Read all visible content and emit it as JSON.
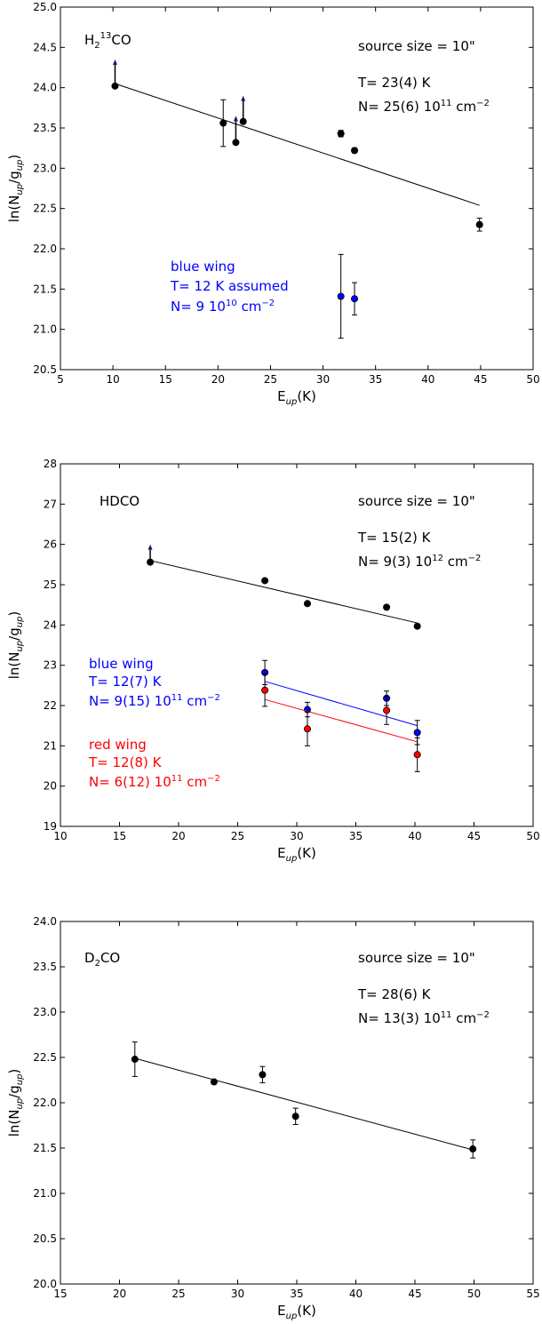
{
  "chart_data": [
    {
      "type": "scatter",
      "xlabel": "E",
      "xlabel_sub": "up",
      "xlabel_suffix": "(K)",
      "ylabel_pre": "ln(N",
      "ylabel_sub1": "up",
      "ylabel_mid": "/g",
      "ylabel_sub2": "up",
      "ylabel_post": ")",
      "xlim": [
        5,
        50
      ],
      "ylim": [
        20.5,
        25.0
      ],
      "xticks": [
        5,
        10,
        15,
        20,
        25,
        30,
        35,
        40,
        45,
        50
      ],
      "yticks": [
        20.5,
        21.0,
        21.5,
        22.0,
        22.5,
        23.0,
        23.5,
        24.0,
        24.5,
        25.0
      ],
      "xtick_labels": [
        "5",
        "10",
        "15",
        "20",
        "25",
        "30",
        "35",
        "40",
        "45",
        "50"
      ],
      "ytick_labels": [
        "20.5",
        "21.0",
        "21.5",
        "22.0",
        "22.5",
        "23.0",
        "23.5",
        "24.0",
        "24.5",
        "25.0"
      ],
      "molecule": {
        "pre": "H",
        "sub": "2",
        "sup": "13",
        "post": "CO"
      },
      "annotations": {
        "source": "source size = 10\"",
        "temp": "T= 23(4) K",
        "col_pre": "N= 25(6) 10",
        "col_exp": "11",
        "col_unit": " cm",
        "col_unit_exp": "−2"
      },
      "wing_labels": [
        {
          "color": "#0000ff",
          "line1": "blue wing",
          "line2": "T= 12 K assumed",
          "col_pre": "N= 9 10",
          "col_exp": "10",
          "col_unit": " cm",
          "col_unit_exp": "−2"
        }
      ],
      "series": [
        {
          "color": "#000000",
          "points": [
            {
              "x": 10.2,
              "y": 24.02,
              "arrow_top": 24.35
            },
            {
              "x": 20.5,
              "y": 23.56,
              "err": 0.29
            },
            {
              "x": 21.7,
              "y": 23.32,
              "arrow_top": 23.65
            },
            {
              "x": 22.4,
              "y": 23.58,
              "arrow_top": 23.9
            },
            {
              "x": 31.7,
              "y": 23.43,
              "err": 0.04
            },
            {
              "x": 33.0,
              "y": 23.22,
              "err": 0.03
            },
            {
              "x": 44.9,
              "y": 22.3,
              "err": 0.08
            }
          ],
          "fit": [
            [
              10.2,
              24.05
            ],
            [
              44.9,
              22.54
            ]
          ]
        },
        {
          "color": "#0000ff",
          "points": [
            {
              "x": 31.7,
              "y": 21.41,
              "err": 0.52
            },
            {
              "x": 33.0,
              "y": 21.38,
              "err": 0.2
            }
          ]
        }
      ]
    },
    {
      "type": "scatter",
      "xlabel": "E",
      "xlabel_sub": "up",
      "xlabel_suffix": "(K)",
      "ylabel_pre": "ln(N",
      "ylabel_sub1": "up",
      "ylabel_mid": "/g",
      "ylabel_sub2": "up",
      "ylabel_post": ")",
      "xlim": [
        10,
        50
      ],
      "ylim": [
        19,
        28
      ],
      "xticks": [
        10,
        15,
        20,
        25,
        30,
        35,
        40,
        45,
        50
      ],
      "yticks": [
        19,
        20,
        21,
        22,
        23,
        24,
        25,
        26,
        27,
        28
      ],
      "xtick_labels": [
        "10",
        "15",
        "20",
        "25",
        "30",
        "35",
        "40",
        "45",
        "50"
      ],
      "ytick_labels": [
        "19",
        "20",
        "21",
        "22",
        "23",
        "24",
        "25",
        "26",
        "27",
        "28"
      ],
      "molecule": {
        "pre": "HDCO",
        "sub": "",
        "sup": "",
        "post": ""
      },
      "annotations": {
        "source": "source size = 10\"",
        "temp": "T= 15(2) K",
        "col_pre": "N= 9(3) 10",
        "col_exp": "12",
        "col_unit": " cm",
        "col_unit_exp": "−2"
      },
      "wing_labels": [
        {
          "color": "#0000ff",
          "line1": "blue wing",
          "line2": "T= 12(7) K",
          "col_pre": "N= 9(15) 10",
          "col_exp": "11",
          "col_unit": " cm",
          "col_unit_exp": "−2"
        },
        {
          "color": "#ff0000",
          "line1": "red wing",
          "line2": "T= 12(8) K",
          "col_pre": "N= 6(12) 10",
          "col_exp": "11",
          "col_unit": " cm",
          "col_unit_exp": "−2"
        }
      ],
      "series": [
        {
          "color": "#000000",
          "points": [
            {
              "x": 17.6,
              "y": 25.56,
              "arrow_top": 26.0
            },
            {
              "x": 27.3,
              "y": 25.1
            },
            {
              "x": 30.9,
              "y": 24.53
            },
            {
              "x": 37.6,
              "y": 24.44
            },
            {
              "x": 40.2,
              "y": 23.97
            }
          ],
          "fit": [
            [
              17.6,
              25.6
            ],
            [
              40.2,
              24.05
            ]
          ]
        },
        {
          "color": "#0000ff",
          "points": [
            {
              "x": 27.3,
              "y": 22.82,
              "err": 0.3
            },
            {
              "x": 30.9,
              "y": 21.9,
              "err": 0.18
            },
            {
              "x": 37.6,
              "y": 22.18,
              "err": 0.18
            },
            {
              "x": 40.2,
              "y": 21.33,
              "err": 0.3
            }
          ],
          "fit": [
            [
              27.3,
              22.6
            ],
            [
              40.2,
              21.5
            ]
          ]
        },
        {
          "color": "#ff0000",
          "points": [
            {
              "x": 27.3,
              "y": 22.38,
              "err": 0.4
            },
            {
              "x": 30.9,
              "y": 21.42,
              "err": 0.42
            },
            {
              "x": 37.6,
              "y": 21.88,
              "err": 0.35
            },
            {
              "x": 40.2,
              "y": 20.78,
              "err": 0.42
            }
          ],
          "fit": [
            [
              27.3,
              22.15
            ],
            [
              40.2,
              21.1
            ]
          ]
        }
      ]
    },
    {
      "type": "scatter",
      "xlabel": "E",
      "xlabel_sub": "up",
      "xlabel_suffix": "(K)",
      "ylabel_pre": "ln(N",
      "ylabel_sub1": "up",
      "ylabel_mid": "/g",
      "ylabel_sub2": "up",
      "ylabel_post": ")",
      "xlim": [
        15,
        55
      ],
      "ylim": [
        20.0,
        24.0
      ],
      "xticks": [
        15,
        20,
        25,
        30,
        35,
        40,
        45,
        50,
        55
      ],
      "yticks": [
        20.0,
        20.5,
        21.0,
        21.5,
        22.0,
        22.5,
        23.0,
        23.5,
        24.0
      ],
      "xtick_labels": [
        "15",
        "20",
        "25",
        "30",
        "35",
        "40",
        "45",
        "50",
        "55"
      ],
      "ytick_labels": [
        "20.0",
        "20.5",
        "21.0",
        "21.5",
        "22.0",
        "22.5",
        "23.0",
        "23.5",
        "24.0"
      ],
      "molecule": {
        "pre": "D",
        "sub": "2",
        "sup": "",
        "post": "CO"
      },
      "annotations": {
        "source": "source size = 10\"",
        "temp": "T= 28(6) K",
        "col_pre": "N= 13(3) 10",
        "col_exp": "11",
        "col_unit": " cm",
        "col_unit_exp": "−2"
      },
      "wing_labels": [],
      "series": [
        {
          "color": "#000000",
          "points": [
            {
              "x": 21.3,
              "y": 22.48,
              "err": 0.19
            },
            {
              "x": 28.0,
              "y": 22.23,
              "err": 0.02
            },
            {
              "x": 32.1,
              "y": 22.31,
              "err": 0.09
            },
            {
              "x": 34.9,
              "y": 21.85,
              "err": 0.09
            },
            {
              "x": 49.9,
              "y": 21.49,
              "err": 0.1
            }
          ],
          "fit": [
            [
              21.3,
              22.49
            ],
            [
              49.9,
              21.48
            ]
          ]
        }
      ]
    }
  ]
}
